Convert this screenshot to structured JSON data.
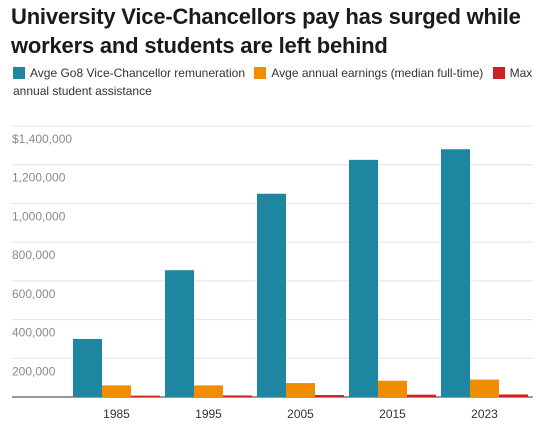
{
  "chart_data": {
    "type": "bar",
    "title": "University Vice-Chancellors pay has surged while workers and students are left behind",
    "categories": [
      "1985",
      "1995",
      "2005",
      "2015",
      "2023"
    ],
    "series": [
      {
        "name": "Avge Go8 Vice-Chancellor remuneration",
        "color": "#1e86a1",
        "values": [
          300000,
          655000,
          1050000,
          1225000,
          1280000
        ]
      },
      {
        "name": "Avge annual earnings (median full-time)",
        "color": "#f28c00",
        "values": [
          60000,
          60000,
          72000,
          84000,
          90000
        ]
      },
      {
        "name": "Max annual student assistance",
        "color": "#cc2222",
        "values": [
          7000,
          8000,
          10000,
          12000,
          13000
        ]
      }
    ],
    "ylim": [
      0,
      1400000
    ],
    "yticks": [
      "$1,400,000",
      "1,200,000",
      "1,000,000",
      "800,000",
      "600,000",
      "400,000",
      "200,000"
    ],
    "ytick_values": [
      1400000,
      1200000,
      1000000,
      800000,
      600000,
      400000,
      200000
    ],
    "grid": true,
    "legend_position": "top-left"
  }
}
